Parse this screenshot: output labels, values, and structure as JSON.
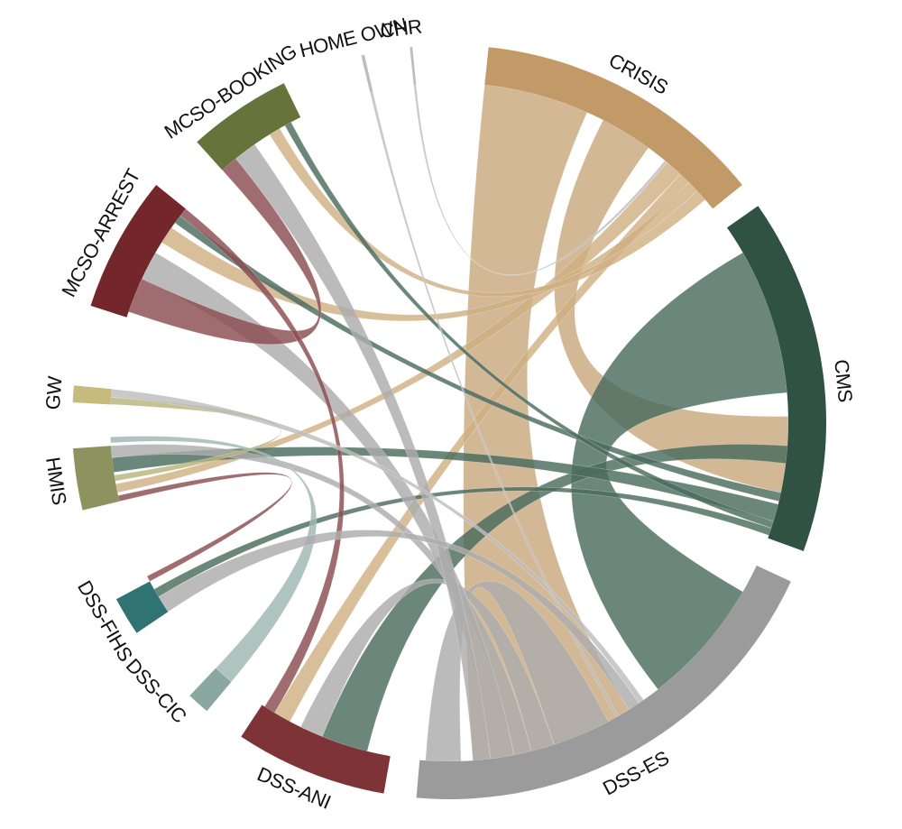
{
  "diagram": {
    "type": "chord",
    "segments": [
      {
        "id": "crisis",
        "label": "CRISIS",
        "color": "#c29a68"
      },
      {
        "id": "cms",
        "label": "CMS",
        "color": "#2f5243"
      },
      {
        "id": "dss_es",
        "label": "DSS-ES",
        "color": "#9b9b9b"
      },
      {
        "id": "dss_ani",
        "label": "DSS-ANI",
        "color": "#7e3436"
      },
      {
        "id": "dss_cic",
        "label": "DSS-CIC",
        "color": "#8aa8a0"
      },
      {
        "id": "dss_fihs",
        "label": "DSS-FIHS",
        "color": "#2f7472"
      },
      {
        "id": "hmis",
        "label": "HMIS",
        "color": "#8d935f"
      },
      {
        "id": "gw",
        "label": "GW",
        "color": "#c5bb7c"
      },
      {
        "id": "mcso_arrest",
        "label": "MCSO-ARREST",
        "color": "#74272b"
      },
      {
        "id": "mcso_booking",
        "label": "MCSO-BOOKING",
        "color": "#66733a"
      },
      {
        "id": "home_own",
        "label": "HOME OWN",
        "color": "#bdbdbd"
      },
      {
        "id": "chr",
        "label": "CHR",
        "color": "#bdbdbd"
      }
    ],
    "ribbons": [
      {
        "id": "crisis-dss_es",
        "from": "crisis",
        "to": "dss_es",
        "color": "#c9a87e"
      },
      {
        "id": "crisis-cms",
        "from": "crisis",
        "to": "cms",
        "color": "#c9a87e"
      },
      {
        "id": "crisis-hmis",
        "from": "crisis",
        "to": "hmis",
        "color": "#d0b083"
      },
      {
        "id": "crisis-dss_ani",
        "from": "crisis",
        "to": "dss_ani",
        "color": "#d0b083"
      },
      {
        "id": "crisis-mcso_arrest",
        "from": "crisis",
        "to": "mcso_arrest",
        "color": "#d0b083"
      },
      {
        "id": "crisis-mcso_booking",
        "from": "crisis",
        "to": "mcso_booking",
        "color": "#d0b083"
      },
      {
        "id": "cms-dss_es",
        "from": "cms",
        "to": "dss_es",
        "color": "#4a6b5e"
      },
      {
        "id": "cms-dss_ani",
        "from": "cms",
        "to": "dss_ani",
        "color": "#4a6b5e"
      },
      {
        "id": "cms-hmis",
        "from": "cms",
        "to": "hmis",
        "color": "#4a6b5e"
      },
      {
        "id": "cms-mcso_arrest",
        "from": "cms",
        "to": "mcso_arrest",
        "color": "#4a6b5e"
      },
      {
        "id": "cms-mcso_booking",
        "from": "cms",
        "to": "mcso_booking",
        "color": "#4a6b5e"
      },
      {
        "id": "cms-dss_fihs",
        "from": "cms",
        "to": "dss_fihs",
        "color": "#4a6b5e"
      },
      {
        "id": "dss_es-self",
        "from": "dss_es",
        "to": "dss_es",
        "color": "#acacac"
      },
      {
        "id": "dss_es-dss_ani",
        "from": "dss_es",
        "to": "dss_ani",
        "color": "#acacac"
      },
      {
        "id": "dss_es-hmis",
        "from": "dss_es",
        "to": "hmis",
        "color": "#acacac"
      },
      {
        "id": "dss_es-mcso_arrest",
        "from": "dss_es",
        "to": "mcso_arrest",
        "color": "#acacac"
      },
      {
        "id": "dss_es-mcso_booking",
        "from": "dss_es",
        "to": "mcso_booking",
        "color": "#acacac"
      },
      {
        "id": "mcso_booking-mcso_arrest",
        "from": "mcso_booking",
        "to": "mcso_arrest",
        "color": "#8a4d51"
      },
      {
        "id": "mcso_arrest-dss_ani",
        "from": "mcso_arrest",
        "to": "dss_ani",
        "color": "#8a4d51"
      },
      {
        "id": "hmis-dss_fihs",
        "from": "hmis",
        "to": "dss_fihs",
        "color": "#8a4d51"
      },
      {
        "id": "gw-hmis",
        "from": "gw",
        "to": "hmis",
        "color": "#b8b37a"
      },
      {
        "id": "gw-dss_es",
        "from": "gw",
        "to": "dss_es",
        "color": "#bdbdbd"
      },
      {
        "id": "home_own-dss_es",
        "from": "home_own",
        "to": "dss_es",
        "color": "#bdbdbd"
      },
      {
        "id": "chr-crisis",
        "from": "chr",
        "to": "crisis",
        "color": "#bdbdbd"
      },
      {
        "id": "dss_cic-hmis",
        "from": "dss_cic",
        "to": "hmis",
        "color": "#9fb7b1"
      },
      {
        "id": "dss_fihs-dss_es",
        "from": "dss_fihs",
        "to": "dss_es",
        "color": "#acacac"
      }
    ]
  }
}
